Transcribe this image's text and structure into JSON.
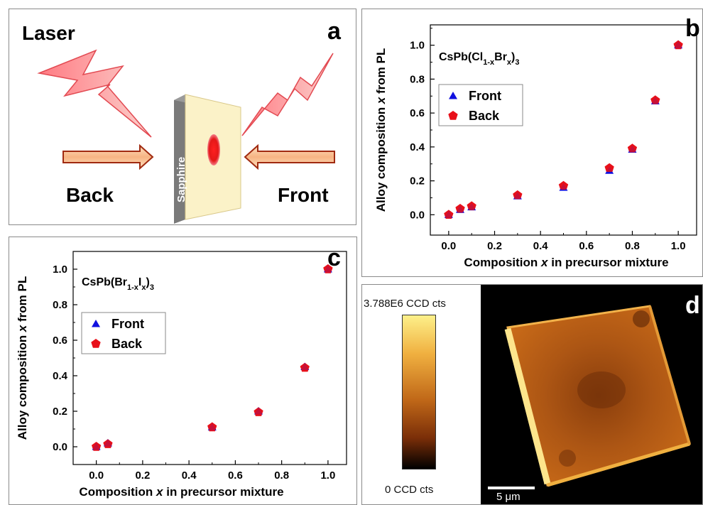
{
  "panels": {
    "a": "a",
    "b": "b",
    "c": "c",
    "d": "d"
  },
  "schematic": {
    "laser": "Laser",
    "back": "Back",
    "front": "Front",
    "substrate": "Sapphire"
  },
  "chart_data": [
    {
      "type": "scatter",
      "panel": "b",
      "title_parts": [
        "CsPb(Cl",
        "1-x",
        "Br",
        "x",
        ")",
        "3"
      ],
      "xlabel_parts": [
        "Composition ",
        "x",
        " in precursor mixture"
      ],
      "ylabel_parts": [
        "Alloy composition ",
        "x",
        " from PL"
      ],
      "xlim": [
        -0.08,
        1.08
      ],
      "ylim": [
        -0.12,
        1.12
      ],
      "xticks": [
        "0.0",
        "0.2",
        "0.4",
        "0.6",
        "0.8",
        "1.0"
      ],
      "yticks": [
        "0.0",
        "0.2",
        "0.4",
        "0.6",
        "0.8",
        "1.0"
      ],
      "legend_position": "top-left",
      "series": [
        {
          "name": "Front",
          "marker": "triangle",
          "color": "#1010e0",
          "x": [
            0,
            0.05,
            0.1,
            0.3,
            0.5,
            0.7,
            0.8,
            0.9,
            1.0
          ],
          "y": [
            0.0,
            0.03,
            0.045,
            0.11,
            0.16,
            0.26,
            0.385,
            0.67,
            1.0
          ]
        },
        {
          "name": "Back",
          "marker": "pentagon",
          "color": "#e8101a",
          "x": [
            0,
            0.05,
            0.1,
            0.3,
            0.5,
            0.7,
            0.8,
            0.9,
            1.0
          ],
          "y": [
            0.0,
            0.035,
            0.05,
            0.115,
            0.17,
            0.275,
            0.39,
            0.675,
            1.0
          ]
        }
      ]
    },
    {
      "type": "scatter",
      "panel": "c",
      "title_parts": [
        "CsPb(Br",
        "1-x",
        "I",
        "x",
        ")",
        "3"
      ],
      "xlabel_parts": [
        "Composition ",
        "x",
        " in precursor mixture"
      ],
      "ylabel_parts": [
        "Alloy composition ",
        "x",
        " from PL"
      ],
      "xlim": [
        -0.1,
        1.08
      ],
      "ylim": [
        -0.1,
        1.1
      ],
      "xticks": [
        "0.0",
        "0.2",
        "0.4",
        "0.6",
        "0.8",
        "1.0"
      ],
      "yticks": [
        "0.0",
        "0.2",
        "0.4",
        "0.6",
        "0.8",
        "1.0"
      ],
      "legend_position": "top-left",
      "series": [
        {
          "name": "Front",
          "marker": "triangle",
          "color": "#1010e0",
          "x": [
            0,
            0.05,
            0.5,
            0.7,
            0.9,
            1.0
          ],
          "y": [
            0.0,
            0.02,
            0.11,
            0.2,
            0.45,
            1.0
          ]
        },
        {
          "name": "Back",
          "marker": "pentagon",
          "color": "#e8101a",
          "x": [
            0,
            0.05,
            0.5,
            0.7,
            0.9,
            1.0
          ],
          "y": [
            0.0,
            0.015,
            0.11,
            0.195,
            0.445,
            1.0
          ]
        }
      ]
    }
  ],
  "colorbar": {
    "max_label": "3.788E6 CCD cts",
    "min_label": "0 CCD cts",
    "colors": [
      "#fdf08a",
      "#f0b040",
      "#c06818",
      "#7a2e08",
      "#000000"
    ]
  },
  "pl_map": {
    "scalebar_label": "5 μm",
    "background": "#000000",
    "fill": "#b85a12"
  }
}
